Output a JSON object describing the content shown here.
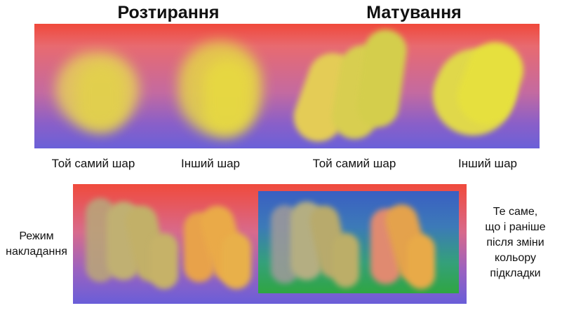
{
  "headings": {
    "smudge": "Розтирання",
    "matte": "Матування"
  },
  "captions": {
    "smudge_same_layer": "Той самий шар",
    "smudge_other_layer": "Інший шар",
    "matte_same_layer": "Той самий шар",
    "matte_other_layer": "Інший шар"
  },
  "notes": {
    "blend_mode_lines": [
      "Режим",
      "накладання"
    ],
    "after_color_change_lines": [
      "Те саме,",
      "що і раніше",
      "після зміни",
      "кольору",
      "підкладки"
    ]
  },
  "colors": {
    "gradient_top": "#f0483a",
    "gradient_bottom": "#6a60d8",
    "yellow_stroke": "#e8d84a",
    "orange_stroke": "#eeaa48",
    "olive_stroke": "#bfae6a",
    "inset_blue": "#3a5fc2",
    "inset_green": "#2fa642"
  }
}
